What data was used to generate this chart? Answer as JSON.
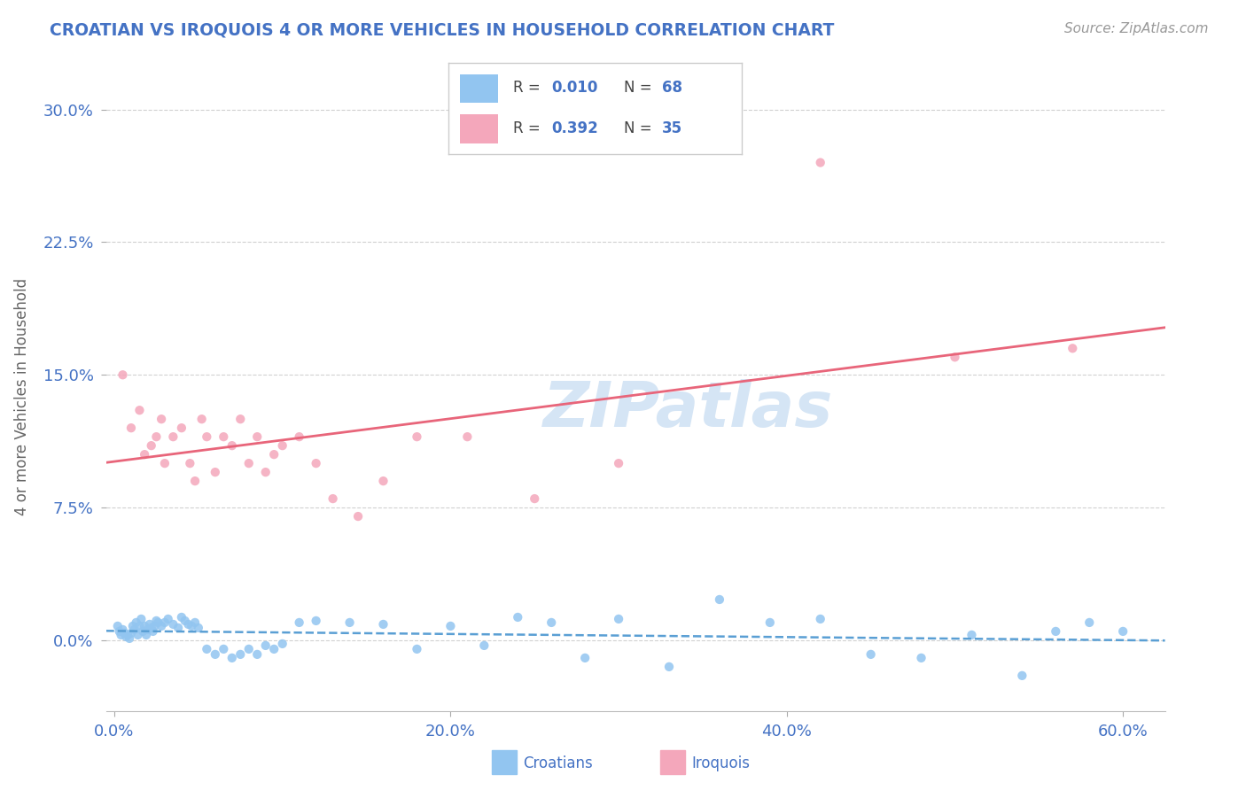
{
  "title": "CROATIAN VS IROQUOIS 4 OR MORE VEHICLES IN HOUSEHOLD CORRELATION CHART",
  "source": "Source: ZipAtlas.com",
  "ylabel": "4 or more Vehicles in Household",
  "x_tick_vals": [
    0.0,
    0.2,
    0.4,
    0.6
  ],
  "x_tick_labels": [
    "0.0%",
    "20.0%",
    "40.0%",
    "60.0%"
  ],
  "y_tick_vals": [
    0.0,
    0.075,
    0.15,
    0.225,
    0.3
  ],
  "y_tick_labels": [
    "0.0%",
    "7.5%",
    "15.0%",
    "22.5%",
    "30.0%"
  ],
  "xlim": [
    -0.005,
    0.625
  ],
  "ylim": [
    -0.04,
    0.315
  ],
  "R_croatian": 0.01,
  "N_croatian": 68,
  "R_iroquois": 0.392,
  "N_iroquois": 35,
  "croatian_color": "#92C5F0",
  "iroquois_color": "#F4A7BB",
  "trendline_croatian_color": "#5A9FD4",
  "trendline_iroquois_color": "#E8657A",
  "watermark": "ZIPatlas",
  "watermark_color": "#D5E5F5",
  "croatians_x": [
    0.002,
    0.003,
    0.004,
    0.005,
    0.006,
    0.007,
    0.008,
    0.009,
    0.01,
    0.011,
    0.012,
    0.013,
    0.014,
    0.015,
    0.016,
    0.017,
    0.018,
    0.019,
    0.02,
    0.021,
    0.022,
    0.023,
    0.024,
    0.025,
    0.026,
    0.028,
    0.03,
    0.032,
    0.035,
    0.038,
    0.04,
    0.042,
    0.044,
    0.046,
    0.048,
    0.05,
    0.055,
    0.06,
    0.065,
    0.07,
    0.075,
    0.08,
    0.085,
    0.09,
    0.095,
    0.1,
    0.11,
    0.12,
    0.14,
    0.16,
    0.18,
    0.2,
    0.22,
    0.24,
    0.26,
    0.28,
    0.3,
    0.33,
    0.36,
    0.39,
    0.42,
    0.45,
    0.48,
    0.51,
    0.54,
    0.56,
    0.58,
    0.6
  ],
  "croatians_y": [
    0.008,
    0.005,
    0.003,
    0.006,
    0.004,
    0.002,
    0.003,
    0.001,
    0.004,
    0.008,
    0.006,
    0.01,
    0.003,
    0.008,
    0.012,
    0.005,
    0.008,
    0.003,
    0.006,
    0.009,
    0.007,
    0.005,
    0.008,
    0.011,
    0.01,
    0.008,
    0.01,
    0.012,
    0.009,
    0.007,
    0.013,
    0.011,
    0.009,
    0.008,
    0.01,
    0.007,
    -0.005,
    -0.008,
    -0.005,
    -0.01,
    -0.008,
    -0.005,
    -0.008,
    -0.003,
    -0.005,
    -0.002,
    0.01,
    0.011,
    0.01,
    0.009,
    -0.005,
    0.008,
    -0.003,
    0.013,
    0.01,
    -0.01,
    0.012,
    -0.015,
    0.023,
    0.01,
    0.012,
    -0.008,
    -0.01,
    0.003,
    -0.02,
    0.005,
    0.01,
    0.005
  ],
  "iroquois_x": [
    0.005,
    0.01,
    0.015,
    0.018,
    0.022,
    0.025,
    0.028,
    0.03,
    0.035,
    0.04,
    0.045,
    0.048,
    0.052,
    0.055,
    0.06,
    0.065,
    0.07,
    0.075,
    0.08,
    0.085,
    0.09,
    0.095,
    0.1,
    0.11,
    0.12,
    0.13,
    0.145,
    0.16,
    0.18,
    0.21,
    0.25,
    0.3,
    0.42,
    0.5,
    0.57
  ],
  "iroquois_y": [
    0.15,
    0.12,
    0.13,
    0.105,
    0.11,
    0.115,
    0.125,
    0.1,
    0.115,
    0.12,
    0.1,
    0.09,
    0.125,
    0.115,
    0.095,
    0.115,
    0.11,
    0.125,
    0.1,
    0.115,
    0.095,
    0.105,
    0.11,
    0.115,
    0.1,
    0.08,
    0.07,
    0.09,
    0.115,
    0.115,
    0.08,
    0.1,
    0.27,
    0.16,
    0.165
  ]
}
